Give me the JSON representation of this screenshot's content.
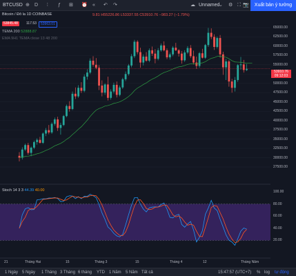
{
  "toolbar": {
    "symbol": "BTCUSD",
    "draw_icon": "pencil-icon",
    "interval": "D",
    "layout_name": "Unnamed",
    "publish_label": "Xuất bản ý tưởng"
  },
  "legend": {
    "title": "Bitcoin / Đô la  1D  COINBASE",
    "ohlc": "55226.86  L53337.55  C53910.76  −983.27 (−1.79%)",
    "o_prefix": "9.81  H",
    "bid": "53845.48",
    "spread": "117.53",
    "ask": "53963.01",
    "tema": "TEMA 200",
    "tema_value": "52888.87",
    "ema_line": "EMA 9H1 TEMA close 13 48 200"
  },
  "price_axis": {
    "labels": [
      "65000.00",
      "62500.00",
      "60000.00",
      "57500.00",
      "55000.00",
      "52500.00",
      "50000.00",
      "47500.00",
      "45000.00",
      "42500.00",
      "40000.00",
      "37500.00",
      "35000.00",
      "32500.00",
      "30000.00",
      "27500.00"
    ],
    "current_price": "53910.76",
    "current_time": "09:12:03"
  },
  "stoch": {
    "title": "Stoch 14 3 3",
    "k_value": "44.39",
    "d_value": "40.00",
    "axis_labels": [
      "100.00",
      "80.00",
      "60.00",
      "40.00",
      "20.00"
    ]
  },
  "x_axis": {
    "ticks": [
      "21",
      "Tháng Hai",
      "15",
      "Tháng 3",
      "15",
      "Tháng 4",
      "12",
      "Tháng Năm"
    ]
  },
  "bottom_bar": {
    "ranges": [
      "1 Ngày",
      "5 Ngày",
      "1 Tháng",
      "3 Tháng",
      "6 tháng",
      "YTD",
      "1 Năm",
      "5 Năm",
      "Tất cả"
    ],
    "clock": "15:47:57 (UTC+7)",
    "percent": "%",
    "log": "log",
    "auto": "tự động"
  },
  "colors": {
    "bull": "#26a69a",
    "bear": "#ef5350",
    "ema": "#2ea043",
    "stoch_k": "#2196f3",
    "stoch_d": "#ff5722",
    "stoch_band": "#3b2466",
    "accent": "#2962ff"
  },
  "chart_data": {
    "type": "candlestick",
    "price_range": [
      27500,
      65000
    ],
    "candles": [
      [
        30500,
        31500,
        29000,
        30000
      ],
      [
        30000,
        32800,
        29500,
        32200
      ],
      [
        32200,
        33800,
        31800,
        33400
      ],
      [
        33400,
        34000,
        30800,
        31300
      ],
      [
        31300,
        33000,
        30400,
        32700
      ],
      [
        32700,
        34600,
        32300,
        34200
      ],
      [
        34200,
        35200,
        33500,
        34800
      ],
      [
        34800,
        35600,
        33800,
        34000
      ],
      [
        34000,
        36800,
        33700,
        36500
      ],
      [
        36500,
        38000,
        35800,
        37400
      ],
      [
        37400,
        38800,
        36300,
        36800
      ],
      [
        36800,
        39500,
        36400,
        39100
      ],
      [
        39100,
        40800,
        38600,
        40300
      ],
      [
        40300,
        41000,
        37200,
        38000
      ],
      [
        38000,
        39400,
        36200,
        38800
      ],
      [
        38800,
        41500,
        38500,
        41200
      ],
      [
        41200,
        44300,
        40900,
        43900
      ],
      [
        43900,
        45200,
        42400,
        43100
      ],
      [
        43100,
        47800,
        42800,
        47200
      ],
      [
        47200,
        48900,
        45800,
        46500
      ],
      [
        46500,
        49500,
        46100,
        48800
      ],
      [
        48800,
        50300,
        47400,
        48000
      ],
      [
        48000,
        52400,
        47600,
        51800
      ],
      [
        51800,
        53800,
        51000,
        52900
      ],
      [
        52900,
        56700,
        52500,
        56100
      ],
      [
        56100,
        57300,
        54500,
        55000
      ],
      [
        55000,
        56800,
        53800,
        54200
      ],
      [
        54200,
        54900,
        48200,
        49400
      ],
      [
        49400,
        50800,
        46500,
        47500
      ],
      [
        47500,
        50000,
        46900,
        49700
      ],
      [
        49700,
        51800,
        45400,
        46100
      ],
      [
        46100,
        48400,
        45600,
        47800
      ],
      [
        47800,
        50200,
        47300,
        49600
      ],
      [
        49600,
        50500,
        46200,
        46900
      ],
      [
        46900,
        49400,
        46500,
        48900
      ],
      [
        48900,
        51500,
        48500,
        51100
      ],
      [
        51100,
        53200,
        50600,
        52500
      ],
      [
        52500,
        55200,
        52100,
        54800
      ],
      [
        54800,
        57900,
        54300,
        57300
      ],
      [
        57300,
        61700,
        56800,
        61200
      ],
      [
        61200,
        61600,
        57800,
        58400
      ],
      [
        58400,
        59600,
        54200,
        55600
      ],
      [
        55600,
        57800,
        54800,
        57200
      ],
      [
        57200,
        58400,
        55800,
        56100
      ],
      [
        56100,
        59400,
        55700,
        58900
      ],
      [
        58900,
        59900,
        57400,
        58000
      ],
      [
        58000,
        59200,
        55400,
        56600
      ],
      [
        56600,
        59500,
        56200,
        58900
      ],
      [
        58900,
        60700,
        58500,
        60200
      ],
      [
        60200,
        61300,
        58600,
        58900
      ],
      [
        58900,
        59400,
        56500,
        57000
      ],
      [
        57000,
        58300,
        56400,
        57800
      ],
      [
        57800,
        60000,
        57300,
        59600
      ],
      [
        59600,
        60900,
        58700,
        58900
      ],
      [
        58900,
        59200,
        57200,
        58000
      ],
      [
        58000,
        58700,
        55300,
        56200
      ],
      [
        56200,
        58900,
        55800,
        58300
      ],
      [
        58300,
        60000,
        57900,
        59500
      ],
      [
        59500,
        60300,
        56800,
        57300
      ],
      [
        57300,
        58800,
        55100,
        55600
      ],
      [
        55600,
        57200,
        53900,
        54700
      ],
      [
        54700,
        58400,
        54200,
        58100
      ],
      [
        58100,
        59300,
        56700,
        56900
      ],
      [
        56900,
        60600,
        56600,
        60300
      ],
      [
        60300,
        64900,
        59800,
        63600
      ],
      [
        63600,
        64800,
        61900,
        62500
      ],
      [
        62500,
        63200,
        59000,
        59800
      ],
      [
        59800,
        62600,
        59400,
        62200
      ],
      [
        62200,
        63000,
        56900,
        57800
      ],
      [
        57800,
        58500,
        52300,
        54300
      ],
      [
        54300,
        56600,
        50900,
        55900
      ],
      [
        55900,
        56300,
        49100,
        50500
      ],
      [
        50500,
        51200,
        47500,
        48800
      ],
      [
        48800,
        51700,
        47800,
        50900
      ],
      [
        50900,
        55200,
        50400,
        54900
      ],
      [
        54900,
        57100,
        53700,
        55100
      ],
      [
        55100,
        56300,
        52900,
        53600
      ],
      [
        53600,
        55200,
        53300,
        53910
      ]
    ]
  }
}
